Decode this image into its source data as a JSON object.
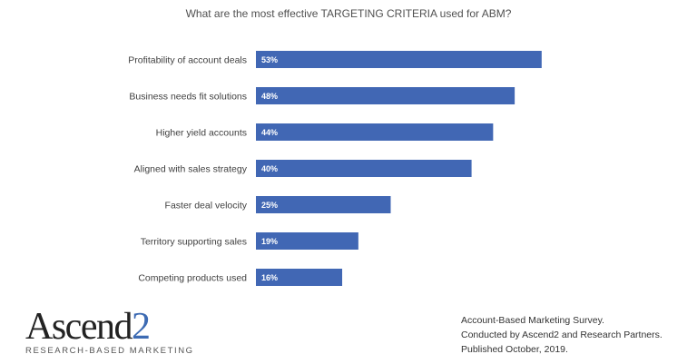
{
  "chart_data": {
    "type": "bar",
    "orientation": "horizontal",
    "title": "What are the most effective TARGETING CRITERIA used for ABM?",
    "categories": [
      "Profitability of account deals",
      "Business needs fit solutions",
      "Higher yield accounts",
      "Aligned with sales strategy",
      "Faster deal velocity",
      "Territory supporting sales",
      "Competing products used"
    ],
    "values": [
      53,
      48,
      44,
      40,
      25,
      19,
      16
    ],
    "data_labels": [
      "53%",
      "48%",
      "44%",
      "40%",
      "25%",
      "19%",
      "16%"
    ],
    "unit": "%",
    "grid": false,
    "bar_color": "#4167b4"
  },
  "logo": {
    "name": "Ascend",
    "name_suffix": "2",
    "tagline": "RESEARCH-BASED MARKETING"
  },
  "source": {
    "line1": "Account-Based Marketing Survey.",
    "line2": "Conducted  by Ascend2 and Research Partners.",
    "line3": "Published October, 2019."
  }
}
